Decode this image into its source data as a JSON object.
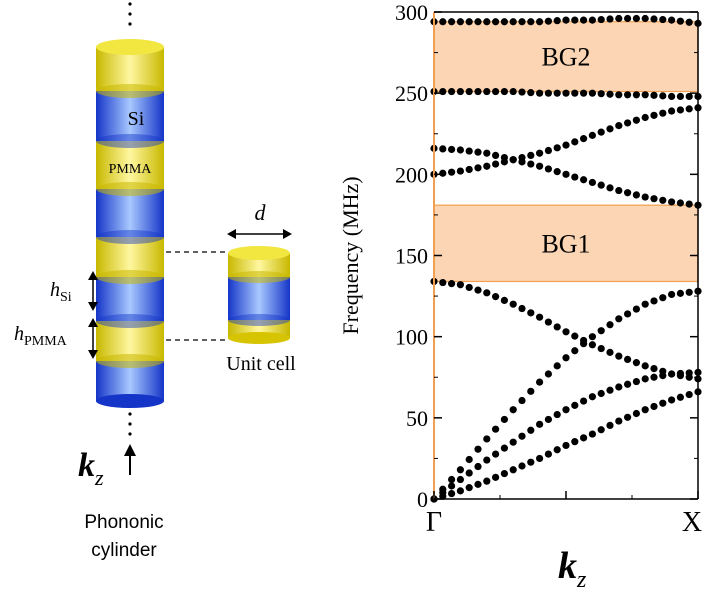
{
  "left_figure": {
    "label_si": "Si",
    "label_pmma": "PMMA",
    "label_d": "d",
    "label_h": "h",
    "label_h_si_sub": "Si",
    "label_h_pmma_sub": "PMMA",
    "unit_cell_label": "Unit cell",
    "k_main": "k",
    "k_sub": "z",
    "caption_line1": "Phononic",
    "caption_line2": "cylinder",
    "colors": {
      "si": "#1f4fe0",
      "pmma": "#e0d000"
    }
  },
  "chart_data": {
    "type": "scatter",
    "ylabel": "Frequency (MHz)",
    "xlabel_main": "k",
    "xlabel_sub": "z",
    "ylim": [
      0,
      300
    ],
    "xlim": [
      0,
      1
    ],
    "x_tick_labels": [
      "Γ",
      "X"
    ],
    "y_ticks": [
      0,
      50,
      100,
      150,
      200,
      250,
      300
    ],
    "bandgaps": [
      {
        "label": "BG1",
        "low": 134,
        "high": 181
      },
      {
        "label": "BG2",
        "low": 251,
        "high": 294
      }
    ],
    "band_color": "#fcd6b4",
    "band_edge_color": "#f0a050",
    "bands": [
      {
        "x": [
          0,
          0.1,
          0.2,
          0.3,
          0.4,
          0.5,
          0.6,
          0.7,
          0.8,
          0.9,
          1.0
        ],
        "y": [
          0,
          5,
          11,
          18,
          25,
          33,
          40,
          48,
          55,
          61,
          66
        ]
      },
      {
        "x": [
          0,
          0.1,
          0.2,
          0.3,
          0.4,
          0.5,
          0.6,
          0.7,
          0.8,
          0.9,
          1.0
        ],
        "y": [
          0,
          12,
          24,
          35,
          46,
          55,
          63,
          69,
          74,
          77,
          78
        ]
      },
      {
        "x": [
          0,
          0.1,
          0.2,
          0.3,
          0.4,
          0.5,
          0.6,
          0.7,
          0.8,
          0.9,
          1.0
        ],
        "y": [
          0,
          18,
          37,
          55,
          72,
          87,
          100,
          111,
          120,
          126,
          128
        ]
      },
      {
        "x": [
          0,
          0.1,
          0.2,
          0.3,
          0.4,
          0.5,
          0.6,
          0.7,
          0.8,
          0.9,
          1.0
        ],
        "y": [
          134,
          132,
          127,
          120,
          112,
          103,
          95,
          88,
          82,
          77,
          74
        ]
      },
      {
        "x": [
          0,
          0.1,
          0.2,
          0.3,
          0.4,
          0.5,
          0.6,
          0.7,
          0.8,
          0.9,
          1.0
        ],
        "y": [
          200,
          202,
          205,
          209,
          213,
          218,
          224,
          230,
          235,
          239,
          241
        ]
      },
      {
        "x": [
          0,
          0.1,
          0.2,
          0.3,
          0.4,
          0.5,
          0.6,
          0.7,
          0.8,
          0.9,
          1.0
        ],
        "y": [
          216,
          215,
          213,
          209,
          205,
          200,
          195,
          190,
          186,
          183,
          181
        ]
      },
      {
        "x": [
          0,
          0.1,
          0.2,
          0.3,
          0.4,
          0.5,
          0.6,
          0.7,
          0.8,
          0.9,
          1.0
        ],
        "y": [
          251,
          251,
          251,
          251,
          250,
          250,
          250,
          249,
          249,
          248,
          248
        ]
      },
      {
        "x": [
          0,
          0.1,
          0.2,
          0.3,
          0.4,
          0.5,
          0.6,
          0.7,
          0.8,
          0.9,
          1.0
        ],
        "y": [
          294,
          294,
          294,
          294,
          294,
          295,
          295,
          296,
          296,
          295,
          293
        ]
      }
    ]
  }
}
